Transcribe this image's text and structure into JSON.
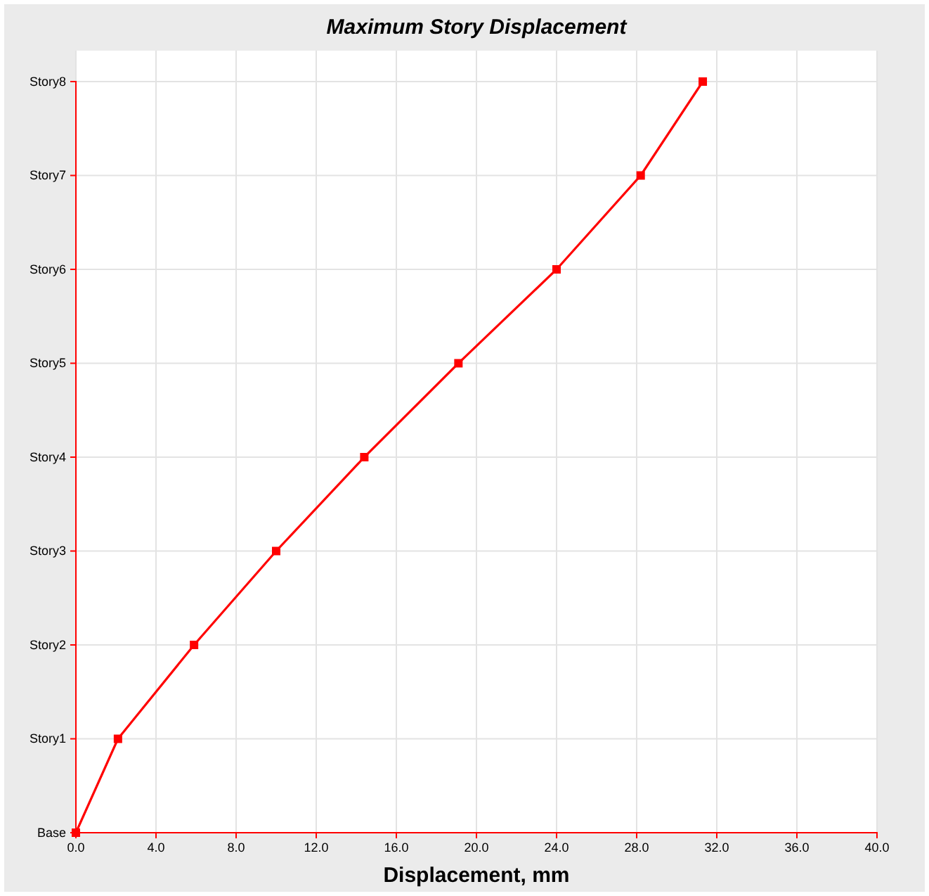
{
  "chart_data": {
    "type": "line",
    "title": "Maximum Story Displacement",
    "xlabel": "Displacement, mm",
    "orientation": "horizontal",
    "categories": [
      "Story8",
      "Story7",
      "Story6",
      "Story5",
      "Story4",
      "Story3",
      "Story2",
      "Story1",
      "Base"
    ],
    "series": [
      {
        "color": "#ff0000",
        "values": [
          31.3,
          28.2,
          24.0,
          19.1,
          14.4,
          10.0,
          5.9,
          2.1,
          0.0
        ]
      }
    ],
    "xlim": [
      0,
      40
    ],
    "xticks": [
      {
        "value": 0,
        "label": "0.0"
      },
      {
        "value": 4,
        "label": "4.0"
      },
      {
        "value": 8,
        "label": "8.0"
      },
      {
        "value": 12,
        "label": "12.0"
      },
      {
        "value": 16,
        "label": "16.0"
      },
      {
        "value": 20,
        "label": "20.0"
      },
      {
        "value": 24,
        "label": "24.0"
      },
      {
        "value": 28,
        "label": "28.0"
      },
      {
        "value": 32,
        "label": "32.0"
      },
      {
        "value": 36,
        "label": "36.0"
      },
      {
        "value": 40,
        "label": "40.0"
      }
    ],
    "grid": true,
    "marker": "square",
    "line_style": "solid"
  }
}
